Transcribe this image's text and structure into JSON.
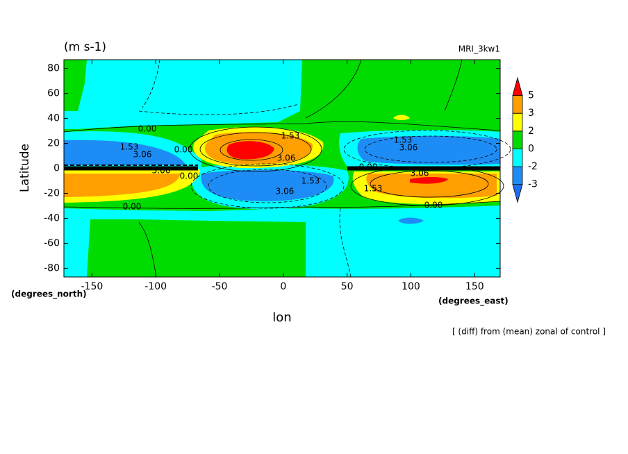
{
  "chart_data": {
    "type": "contour",
    "title": "(m s-1)",
    "subtitle": "MRI_3kw1",
    "x_label": "lon",
    "y_label": "Latitude",
    "x_units": "(degrees_east)",
    "y_units": "(degrees_north)",
    "note": "[ (diff) from (mean) zonal of control ]",
    "xlim": [
      -172,
      170
    ],
    "ylim": [
      -87,
      87
    ],
    "xticks": [
      -150,
      -100,
      -50,
      0,
      50,
      100,
      150
    ],
    "yticks": [
      -80,
      -60,
      -40,
      -20,
      0,
      20,
      40,
      60,
      80
    ],
    "contour_labels": [
      "0.00",
      "1.53",
      "3.06"
    ],
    "colorbar": {
      "levels": [
        -3,
        -2,
        0,
        2,
        3,
        5
      ],
      "colors": [
        "#1e6eeb",
        "#1e8cf5",
        "#00ffff",
        "#00dc00",
        "#ffff00",
        "#ffa000",
        "#ff0000"
      ]
    }
  }
}
